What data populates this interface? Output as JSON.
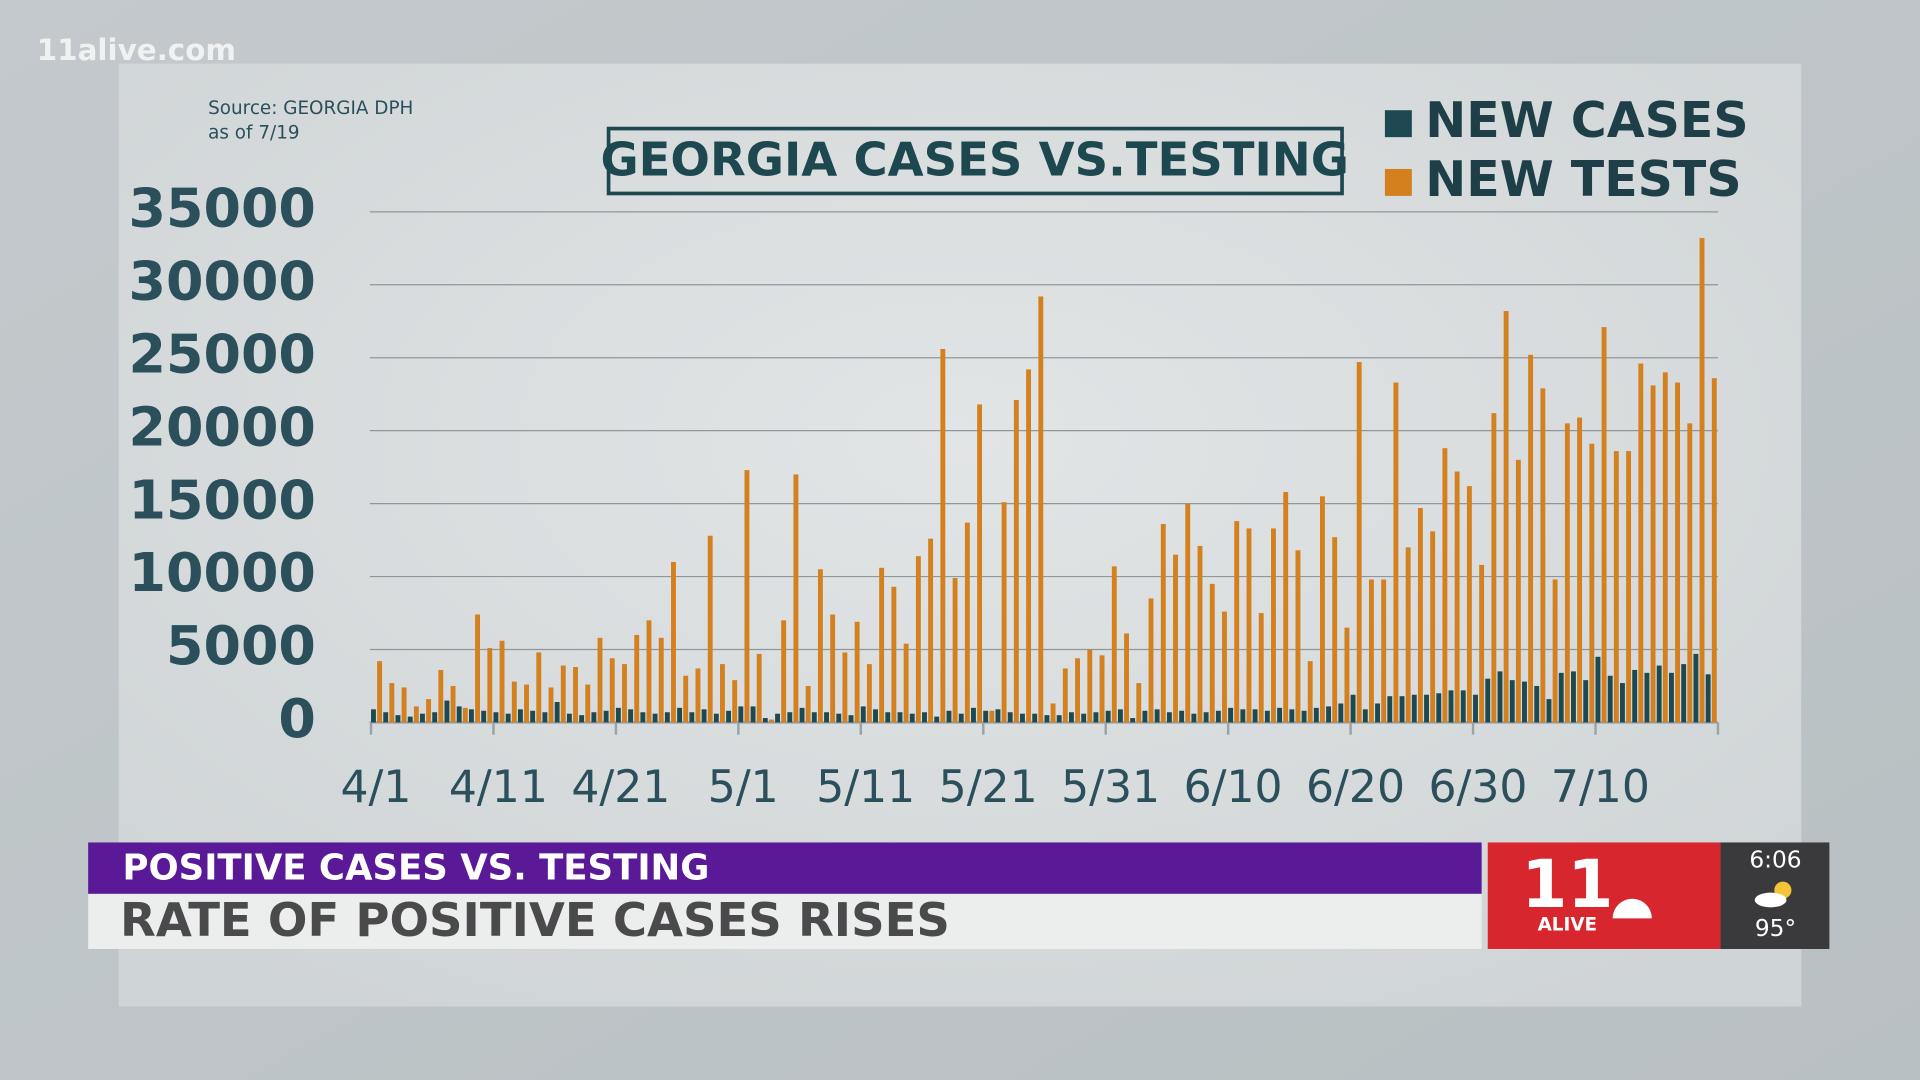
{
  "watermark": "11alive.com",
  "chart_data": {
    "type": "bar",
    "title": "GEORGIA CASES VS.TESTING",
    "source": "Source: GEORGIA DPH",
    "as_of": "as of 7/19",
    "categories": [
      "4/1",
      null,
      null,
      null,
      null,
      null,
      null,
      null,
      null,
      null,
      "4/11",
      null,
      null,
      null,
      null,
      null,
      null,
      null,
      null,
      null,
      "4/21",
      null,
      null,
      null,
      null,
      null,
      null,
      null,
      null,
      null,
      "5/1",
      null,
      null,
      null,
      null,
      null,
      null,
      null,
      null,
      null,
      "5/11",
      null,
      null,
      null,
      null,
      null,
      null,
      null,
      null,
      null,
      "5/21",
      null,
      null,
      null,
      null,
      null,
      null,
      null,
      null,
      null,
      "5/31",
      null,
      null,
      null,
      null,
      null,
      null,
      null,
      null,
      null,
      "6/10",
      null,
      null,
      null,
      null,
      null,
      null,
      null,
      null,
      null,
      "6/20",
      null,
      null,
      null,
      null,
      null,
      null,
      null,
      null,
      null,
      "6/30",
      null,
      null,
      null,
      null,
      null,
      null,
      null,
      null,
      null,
      "7/10",
      null,
      null,
      null,
      null,
      null,
      null,
      null,
      null,
      null
    ],
    "series": [
      {
        "name": "NEW CASES",
        "color": "#1d4a52",
        "values": [
          900,
          700,
          500,
          400,
          600,
          700,
          1500,
          1100,
          900,
          800,
          700,
          600,
          900,
          800,
          700,
          1400,
          600,
          500,
          700,
          800,
          1000,
          900,
          700,
          600,
          700,
          1000,
          700,
          900,
          600,
          800,
          1100,
          1100,
          300,
          600,
          700,
          1000,
          700,
          700,
          600,
          500,
          1100,
          900,
          700,
          700,
          600,
          700,
          400,
          800,
          600,
          1000,
          800,
          900,
          700,
          600,
          600,
          500,
          500,
          700,
          600,
          700,
          800,
          900,
          300,
          800,
          900,
          700,
          800,
          600,
          700,
          800,
          1000,
          900,
          900,
          800,
          1000,
          900,
          800,
          1000,
          1100,
          1300,
          1900,
          900,
          1300,
          1800,
          1800,
          1900,
          1900,
          2000,
          2200,
          2200,
          1900,
          3000,
          3500,
          2900,
          2800,
          2500,
          1600,
          3400,
          3500,
          2900,
          4500,
          3200,
          2700,
          3600,
          3400,
          3900,
          3400,
          4000,
          4700,
          3300
        ]
      },
      {
        "name": "NEW TESTS",
        "color": "#d4801f",
        "values": [
          4200,
          2700,
          2400,
          1100,
          1600,
          3600,
          2500,
          1000,
          7400,
          5100,
          5600,
          2800,
          2600,
          4800,
          2400,
          3900,
          3800,
          2600,
          5800,
          4400,
          4000,
          6000,
          7000,
          5800,
          11000,
          3200,
          3700,
          12800,
          4000,
          2900,
          17300,
          4700,
          200,
          7000,
          17000,
          2500,
          10500,
          7400,
          4800,
          6900,
          4000,
          10600,
          9300,
          5400,
          11400,
          12600,
          25600,
          9900,
          13700,
          21800,
          800,
          15100,
          22100,
          24200,
          29200,
          1300,
          3700,
          4400,
          5000,
          4600,
          10700,
          6100,
          2700,
          8500,
          13600,
          11500,
          15000,
          12100,
          9500,
          7600,
          13800,
          13300,
          7500,
          13300,
          15800,
          11800,
          4200,
          15500,
          12700,
          6500,
          24700,
          9800,
          9800,
          23300,
          12000,
          14700,
          13100,
          18800,
          17200,
          16200,
          10800,
          21200,
          28200,
          18000,
          25200,
          22900,
          9800,
          20500,
          20900,
          19100,
          27100,
          18600,
          18600,
          24600,
          23100,
          24000,
          23300,
          20500,
          33200,
          23600
        ]
      }
    ],
    "ylim": [
      0,
      35000
    ],
    "yticks": [
      0,
      5000,
      10000,
      15000,
      20000,
      25000,
      30000,
      35000
    ],
    "grid": true,
    "legend": "top-right"
  },
  "lower_third": {
    "kicker": "POSITIVE CASES VS. TESTING",
    "headline": "RATE OF POSITIVE CASES RISES"
  },
  "bug": {
    "channel": "11",
    "station": "ALIVE",
    "time": "6:06",
    "temperature": "95°"
  }
}
